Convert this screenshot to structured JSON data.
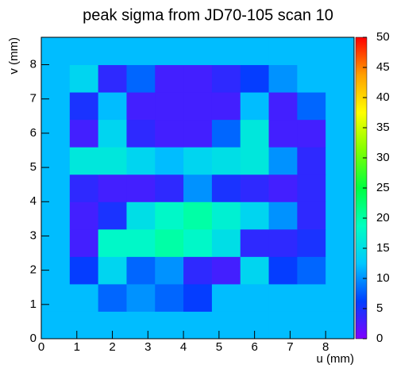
{
  "chart_data": {
    "type": "heatmap",
    "title": "peak sigma from JD70-105 scan 10",
    "x_label": "u (mm)",
    "y_label": "v (mm)",
    "x_edges": [
      0,
      0.8,
      1.6,
      2.4,
      3.2,
      4.0,
      4.8,
      5.6,
      6.4,
      7.2,
      8.0,
      8.8
    ],
    "y_edges": [
      0,
      0.8,
      1.6,
      2.4,
      3.2,
      4.0,
      4.8,
      5.6,
      6.4,
      7.2,
      8.0,
      8.8
    ],
    "z": [
      [
        12,
        12,
        12,
        12,
        12,
        12,
        12,
        12,
        12,
        12,
        12
      ],
      [
        12,
        12,
        8,
        10,
        8,
        6,
        12,
        12,
        12,
        12,
        12
      ],
      [
        12,
        6,
        14,
        8,
        10,
        4,
        3,
        14,
        6,
        8,
        12
      ],
      [
        12,
        3,
        18,
        18,
        20,
        18,
        15,
        4,
        4,
        5,
        12
      ],
      [
        12,
        3,
        5,
        15,
        18,
        20,
        17,
        14,
        10,
        4,
        12
      ],
      [
        12,
        4,
        3,
        3,
        4,
        10,
        5,
        4,
        3,
        4,
        12
      ],
      [
        12,
        16,
        16,
        14,
        12,
        14,
        15,
        16,
        10,
        4,
        12
      ],
      [
        12,
        3,
        14,
        4,
        3,
        3,
        8,
        16,
        3,
        3,
        12
      ],
      [
        12,
        5,
        12,
        3,
        3,
        3,
        3,
        12,
        3,
        8,
        12
      ],
      [
        12,
        14,
        4,
        8,
        3,
        3,
        4,
        6,
        10,
        12,
        12
      ],
      [
        12,
        12,
        12,
        12,
        12,
        12,
        12,
        12,
        12,
        12,
        12
      ]
    ],
    "xlim": [
      0,
      8.8
    ],
    "ylim": [
      0,
      8.8
    ],
    "xticks": [
      0,
      1,
      2,
      3,
      4,
      5,
      6,
      7,
      8
    ],
    "yticks": [
      0,
      1,
      2,
      3,
      4,
      5,
      6,
      7,
      8
    ],
    "zlim": [
      0,
      50
    ],
    "zticks": [
      0,
      5,
      10,
      15,
      20,
      25,
      30,
      35,
      40,
      45,
      50
    ],
    "palette": [
      "#8000ff",
      "#0040ff",
      "#00c8ff",
      "#00ffc0",
      "#00ff40",
      "#80ff00",
      "#ffff00",
      "#ffa000",
      "#ff0000"
    ]
  }
}
